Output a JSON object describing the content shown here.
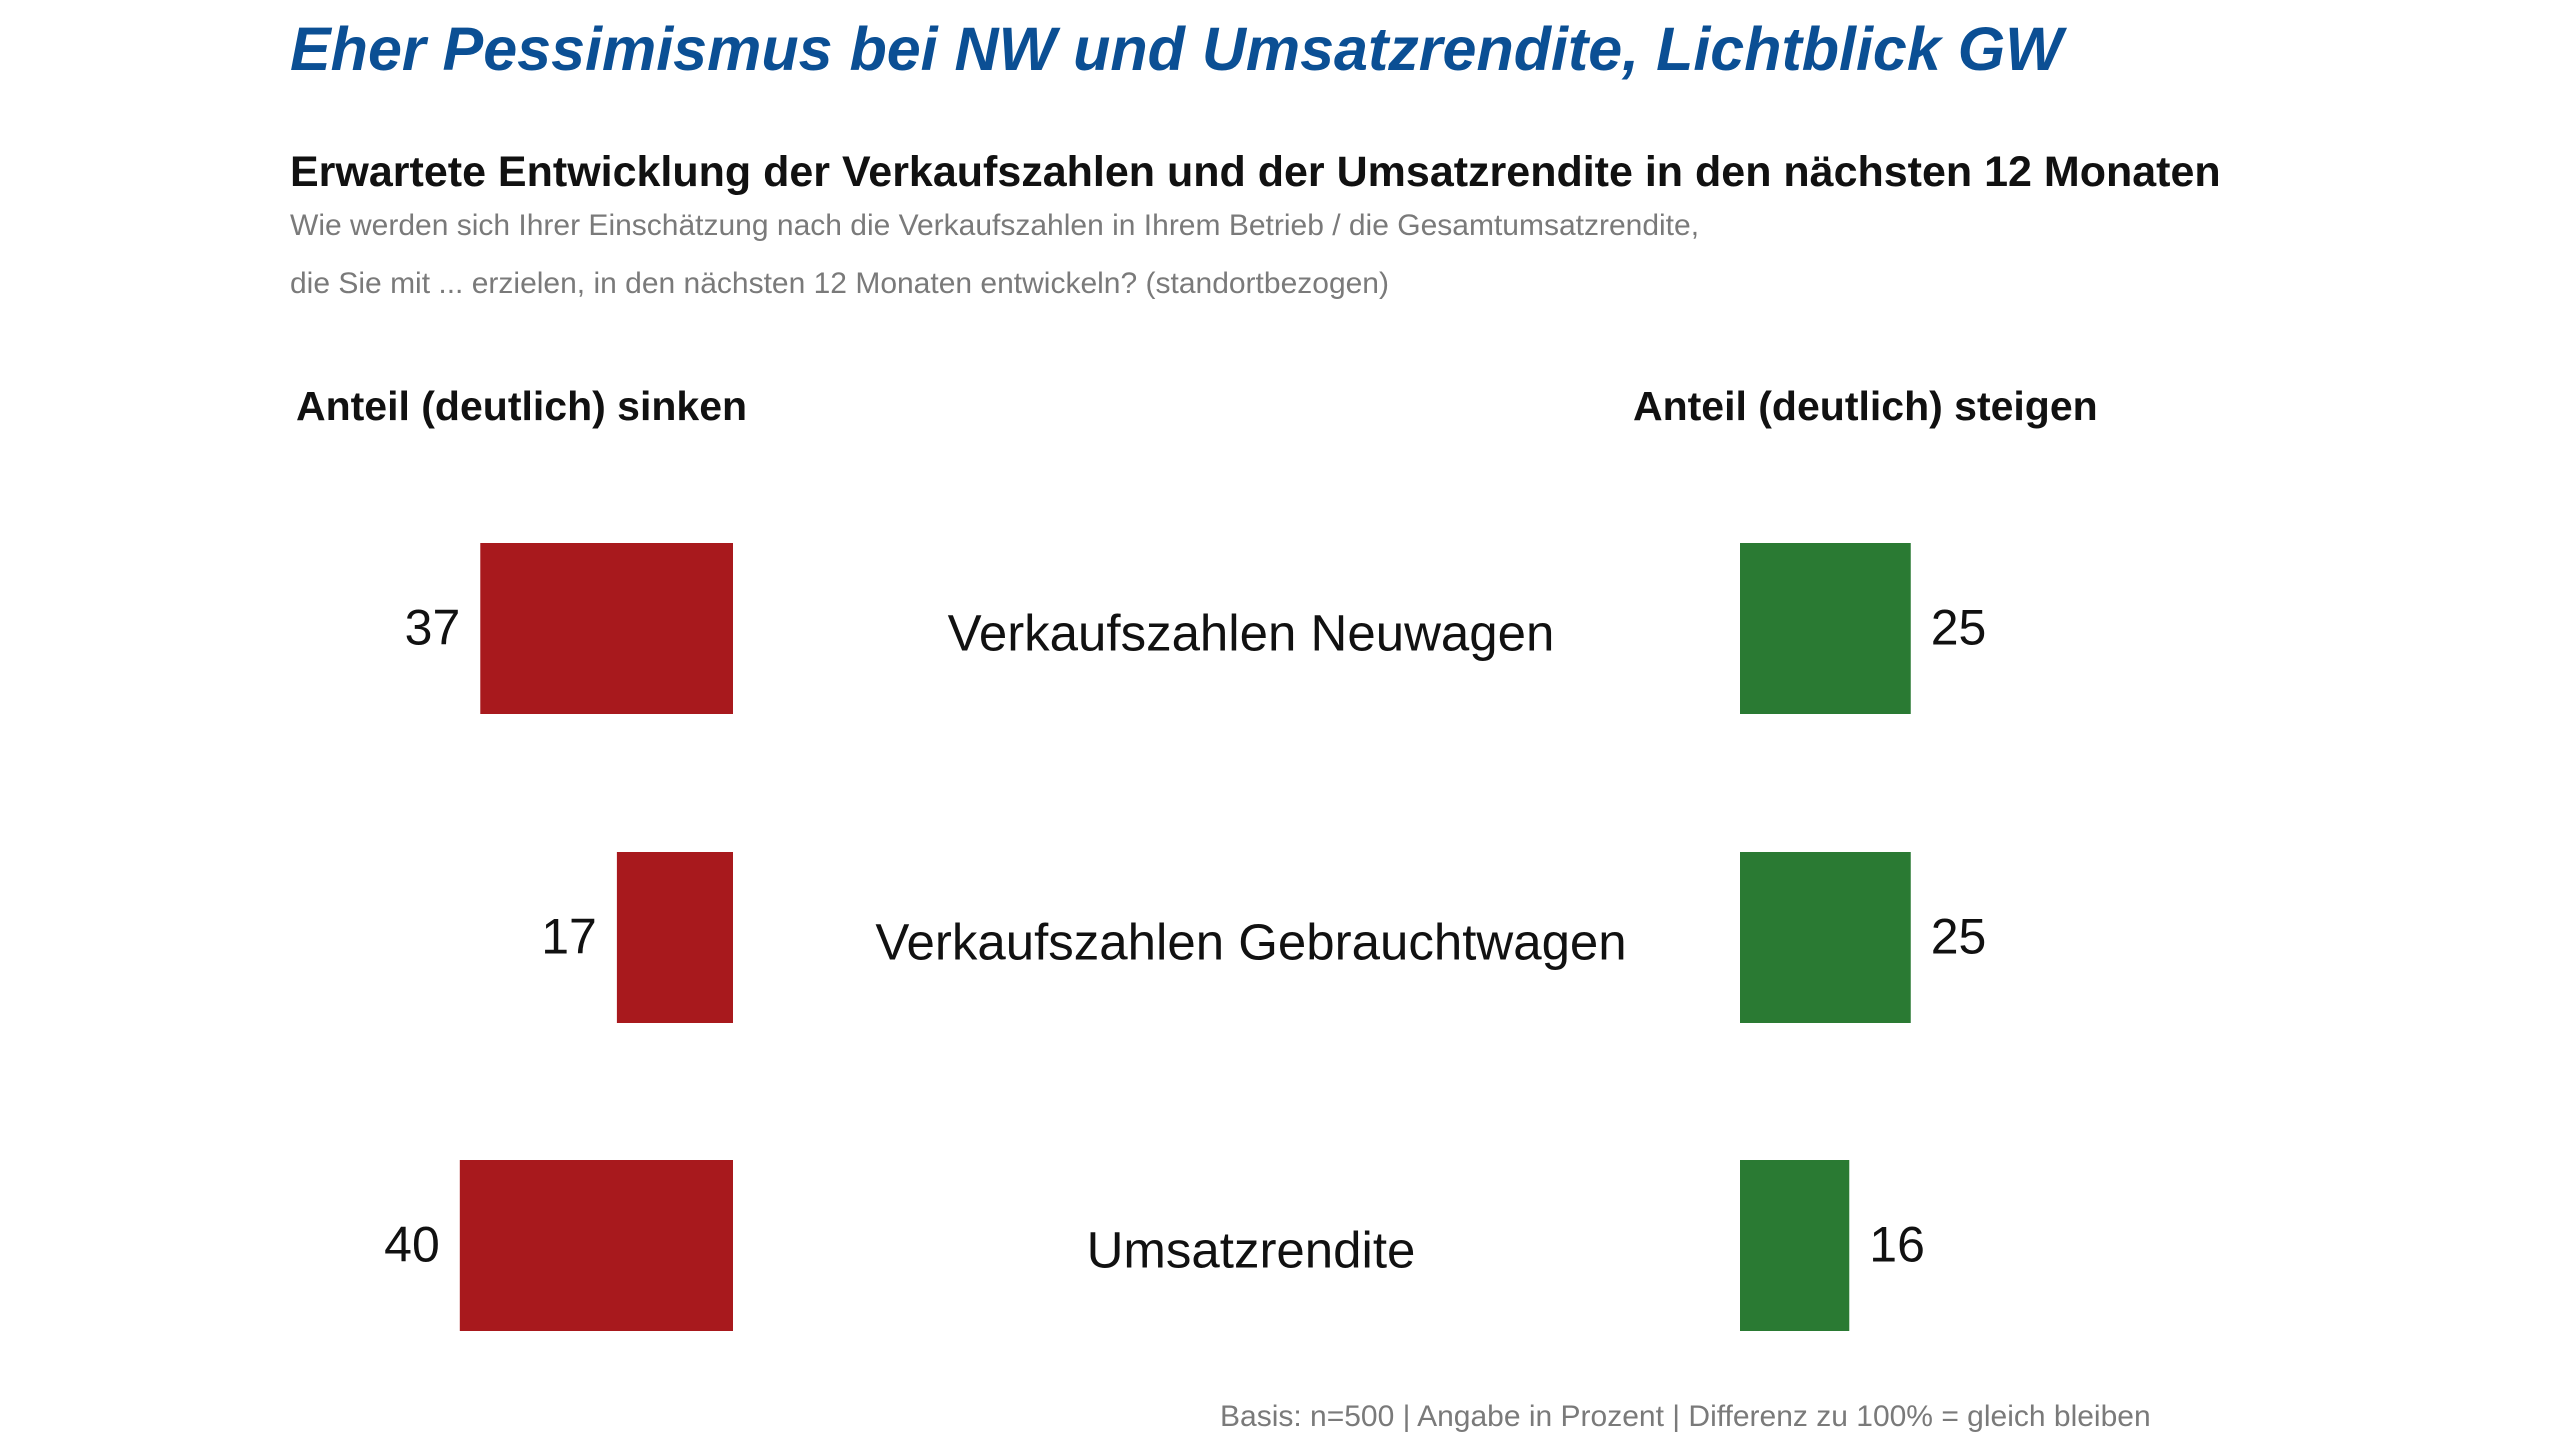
{
  "title": "Eher Pessimismus bei NW und Umsatzrendite, Lichtblick GW",
  "subtitle": "Erwartete Entwicklung der Verkaufszahlen und der Umsatzrendite in den nächsten 12 Monaten",
  "question_line1": "Wie werden sich Ihrer Einschätzung nach die Verkaufszahlen in Ihrem Betrieb / die Gesamtumsatzrendite,",
  "question_line2": "die Sie mit ... erzielen, in den nächsten 12 Monaten entwickeln? (standortbezogen)",
  "footnote": "Basis: n=500 | Angabe in Prozent | Differenz zu 100% = gleich bleiben",
  "chart_data": {
    "type": "bar",
    "orientation": "diverging-horizontal",
    "categories": [
      "Verkaufszahlen Neuwagen",
      "Verkaufszahlen Gebrauchtwagen",
      "Umsatzrendite"
    ],
    "series": [
      {
        "name": "Anteil (deutlich) sinken",
        "values": [
          37,
          17,
          40
        ],
        "color": "#a8191d"
      },
      {
        "name": "Anteil (deutlich) steigen",
        "values": [
          25,
          25,
          16
        ],
        "color": "#2a7a33"
      }
    ],
    "unit": "%",
    "grid": false,
    "data_labels": true
  }
}
